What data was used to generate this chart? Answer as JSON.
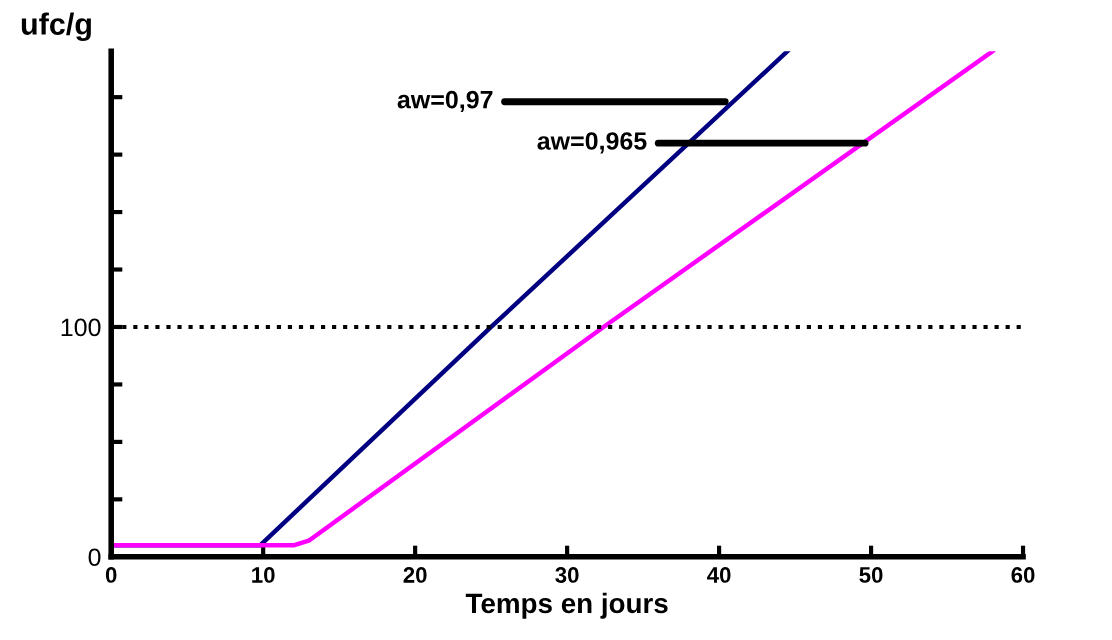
{
  "chart_data": {
    "type": "line",
    "xlabel": "Temps en jours",
    "ylabel": "ufc/g",
    "xlim": [
      0,
      60
    ],
    "xticks": [
      0,
      10,
      20,
      30,
      40,
      50,
      60
    ],
    "ylim": [
      0,
      220
    ],
    "yticks": [
      0,
      {
        "value": 25,
        "label": null
      },
      {
        "value": 50,
        "label": null
      },
      {
        "value": 75,
        "label": null
      },
      100,
      {
        "value": 125,
        "label": null
      },
      {
        "value": 150,
        "label": null
      },
      {
        "value": 175,
        "label": null
      },
      {
        "value": 200,
        "label": null
      }
    ],
    "series": [
      {
        "color": "#000080",
        "x": [
          0,
          9.8,
          25,
          44.5
        ],
        "values": [
          5,
          5,
          100,
          220
        ]
      },
      {
        "color": "#ff00ff",
        "x": [
          0,
          12,
          13,
          32.4,
          58
        ],
        "values": [
          5,
          5,
          7,
          100,
          220
        ]
      }
    ],
    "ref_lines": [
      {
        "axis": "y",
        "value": 100,
        "color": "#000000",
        "line_style": "dotted"
      }
    ],
    "annotations": [
      {
        "text": "aw=0,97",
        "x": 40.4,
        "y": 198
      },
      {
        "text": "aw=0,965",
        "x": 49.6,
        "y": 180
      }
    ],
    "grid": false,
    "legend": false,
    "marker": "none",
    "line_style": "solid"
  }
}
